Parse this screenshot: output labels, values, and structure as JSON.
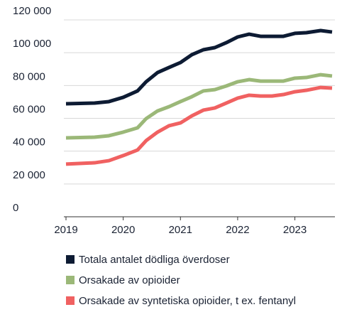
{
  "chart_data": {
    "type": "line",
    "x": [
      2019,
      2019.5,
      2019.75,
      2020,
      2020.25,
      2020.4,
      2020.6,
      2020.8,
      2021,
      2021.2,
      2021.4,
      2021.6,
      2021.8,
      2022,
      2022.2,
      2022.4,
      2022.6,
      2022.8,
      2023,
      2023.2,
      2023.45,
      2023.65
    ],
    "series": [
      {
        "name": "Totala antalet dödliga överdoser",
        "color": "#0d1b33",
        "values": [
          68900,
          69300,
          70200,
          72800,
          76700,
          82300,
          87900,
          91000,
          94000,
          98800,
          101800,
          103100,
          106100,
          109600,
          111300,
          110000,
          110000,
          110000,
          111800,
          112200,
          113500,
          112600
        ]
      },
      {
        "name": "Orsakade av opioider",
        "color": "#9bb878",
        "values": [
          48100,
          48500,
          49400,
          51600,
          54200,
          59800,
          64500,
          67100,
          70200,
          73200,
          76700,
          77500,
          79700,
          82300,
          83600,
          82700,
          82700,
          82700,
          84500,
          84900,
          86600,
          85800
        ]
      },
      {
        "name": "Orsakade av syntetiska opioider, t ex. fentanyl",
        "color": "#f06161",
        "values": [
          32100,
          32900,
          34200,
          37300,
          40700,
          46400,
          51600,
          55500,
          57200,
          61500,
          65000,
          66300,
          69300,
          72300,
          74100,
          73600,
          73600,
          74500,
          76200,
          77100,
          78800,
          78400
        ]
      }
    ],
    "xlim": [
      2019,
      2023.7
    ],
    "xticks": [
      2019,
      2020,
      2021,
      2022,
      2023
    ],
    "ylim": [
      0,
      120000
    ],
    "yticks": [
      0,
      {
        "value": 20000,
        "label": "20 000"
      },
      {
        "value": 40000,
        "label": "40 000"
      },
      {
        "value": 60000,
        "label": "60 000"
      },
      {
        "value": 80000,
        "label": "80 000"
      },
      {
        "value": 100000,
        "label": "100 000"
      },
      {
        "value": 120000,
        "label": "120 000"
      }
    ],
    "grid": true
  }
}
